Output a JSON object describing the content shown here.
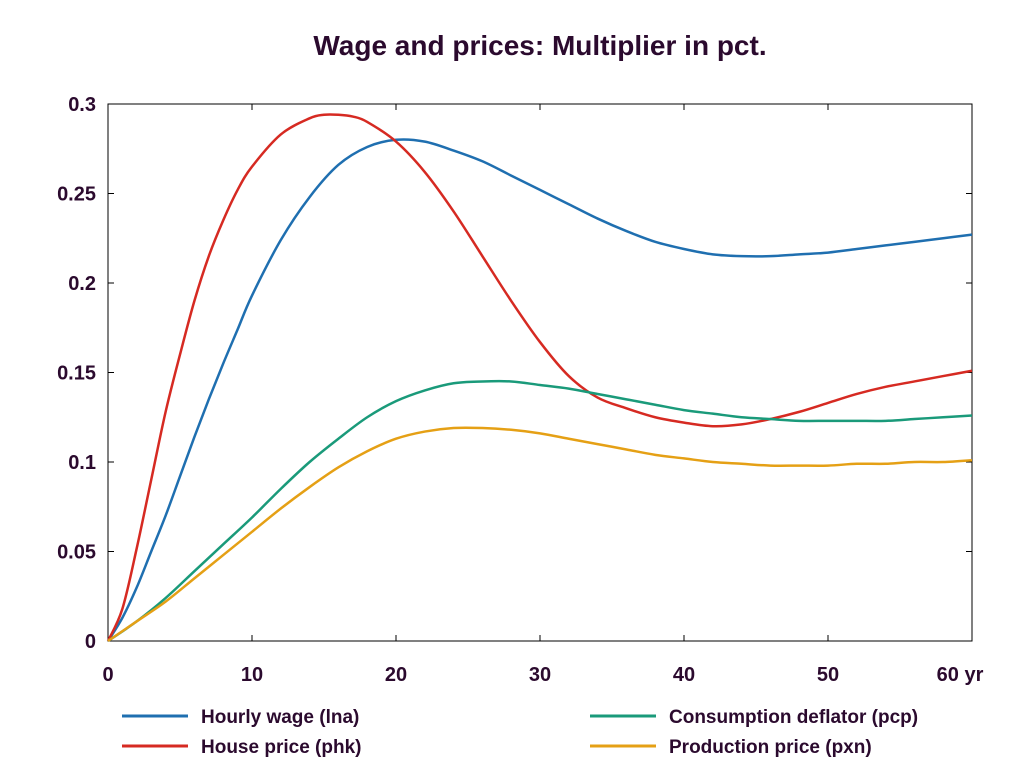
{
  "chart_data": {
    "type": "line",
    "title": "Wage and prices: Multiplier in pct.",
    "xlabel": "",
    "ylabel": "",
    "x_unit_label": "yr",
    "xlim": [
      0,
      60
    ],
    "ylim": [
      0,
      0.3
    ],
    "x_ticks": [
      0,
      10,
      20,
      30,
      40,
      50,
      60
    ],
    "x_tick_labels": [
      "0",
      "10",
      "20",
      "30",
      "40",
      "50",
      "60 yr"
    ],
    "y_ticks": [
      0,
      0.05,
      0.1,
      0.15,
      0.2,
      0.25,
      0.3
    ],
    "y_tick_labels": [
      "0",
      "0.05",
      "0.1",
      "0.15",
      "0.2",
      "0.25",
      "0.3"
    ],
    "grid": false,
    "legend_position": "bottom",
    "series": [
      {
        "name": "Hourly wage (lna)",
        "color": "#1f6fb0",
        "x": [
          0,
          1,
          2,
          3,
          4,
          5,
          6,
          7,
          8,
          9,
          10,
          12,
          14,
          16,
          18,
          20,
          22,
          24,
          26,
          28,
          30,
          32,
          34,
          36,
          38,
          40,
          42,
          44,
          46,
          48,
          50,
          52,
          54,
          56,
          58,
          60
        ],
        "y": [
          0,
          0.013,
          0.03,
          0.05,
          0.07,
          0.092,
          0.114,
          0.135,
          0.155,
          0.174,
          0.193,
          0.224,
          0.248,
          0.266,
          0.276,
          0.28,
          0.279,
          0.274,
          0.268,
          0.26,
          0.252,
          0.244,
          0.236,
          0.229,
          0.223,
          0.219,
          0.216,
          0.215,
          0.215,
          0.216,
          0.217,
          0.219,
          0.221,
          0.223,
          0.225,
          0.227
        ]
      },
      {
        "name": "House price (phk)",
        "color": "#d62a22",
        "x": [
          0,
          1,
          2,
          3,
          4,
          5,
          6,
          7,
          8,
          9,
          10,
          12,
          14,
          15,
          16,
          17,
          18,
          20,
          22,
          24,
          26,
          28,
          30,
          32,
          34,
          36,
          38,
          40,
          42,
          44,
          46,
          48,
          50,
          52,
          54,
          56,
          58,
          60
        ],
        "y": [
          0,
          0.018,
          0.052,
          0.09,
          0.128,
          0.16,
          0.19,
          0.215,
          0.235,
          0.252,
          0.265,
          0.283,
          0.292,
          0.294,
          0.294,
          0.293,
          0.29,
          0.279,
          0.262,
          0.24,
          0.215,
          0.19,
          0.167,
          0.148,
          0.136,
          0.13,
          0.125,
          0.122,
          0.12,
          0.121,
          0.124,
          0.128,
          0.133,
          0.138,
          0.142,
          0.145,
          0.148,
          0.151
        ]
      },
      {
        "name": "Consumption deflator (pcp)",
        "color": "#1a9a7a",
        "x": [
          0,
          2,
          4,
          6,
          8,
          10,
          12,
          14,
          16,
          18,
          20,
          22,
          24,
          26,
          28,
          30,
          32,
          34,
          36,
          38,
          40,
          42,
          44,
          46,
          48,
          50,
          52,
          54,
          56,
          58,
          60
        ],
        "y": [
          0,
          0.011,
          0.024,
          0.039,
          0.054,
          0.069,
          0.085,
          0.1,
          0.113,
          0.125,
          0.134,
          0.14,
          0.144,
          0.145,
          0.145,
          0.143,
          0.141,
          0.138,
          0.135,
          0.132,
          0.129,
          0.127,
          0.125,
          0.124,
          0.123,
          0.123,
          0.123,
          0.123,
          0.124,
          0.125,
          0.126
        ]
      },
      {
        "name": "Production price (pxn)",
        "color": "#e5a015",
        "x": [
          0,
          2,
          4,
          6,
          8,
          10,
          12,
          14,
          16,
          18,
          20,
          22,
          24,
          26,
          28,
          30,
          32,
          34,
          36,
          38,
          40,
          42,
          44,
          46,
          48,
          50,
          52,
          54,
          56,
          58,
          60
        ],
        "y": [
          0,
          0.011,
          0.022,
          0.035,
          0.048,
          0.061,
          0.074,
          0.086,
          0.097,
          0.106,
          0.113,
          0.117,
          0.119,
          0.119,
          0.118,
          0.116,
          0.113,
          0.11,
          0.107,
          0.104,
          0.102,
          0.1,
          0.099,
          0.098,
          0.098,
          0.098,
          0.099,
          0.099,
          0.1,
          0.1,
          0.101
        ]
      }
    ]
  }
}
